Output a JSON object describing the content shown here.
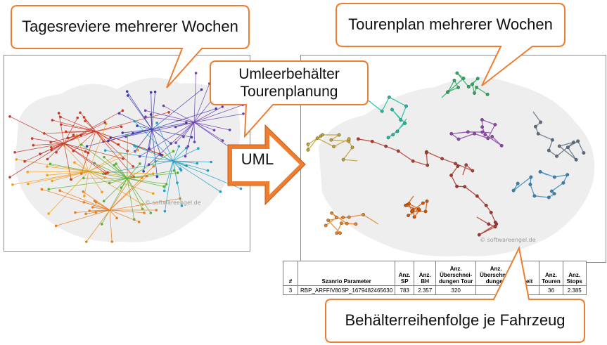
{
  "callouts": {
    "daily_areas": "Tagesreviere mehrerer Wochen",
    "tour_plan": "Tourenplan mehrerer Wochen",
    "planning_line1": "Umleerbehälter",
    "planning_line2": "Tourenplanung",
    "sequence": "Behälterreihenfolge je Fahrzeug"
  },
  "arrow_label": "UML",
  "watermark": "© softwareengel.de",
  "table": {
    "headers": [
      "#",
      "Szanrio Parameter",
      "Anz. SP",
      "Anz. BH",
      "Anz. Überschnei-dungen Tour",
      "Anz. Überschnei-dungen",
      "heit",
      "Anz. Touren",
      "Anz. Stops"
    ],
    "row": [
      "3",
      "RBP_ARFFIV80SP_1679482465630",
      "783",
      "2.357",
      "320",
      "",
      "",
      "36",
      "2.385"
    ]
  },
  "colors": {
    "callout_border": "#ed7d31",
    "arrow_fill": "#ed7d31",
    "map_area": "#eeeeee"
  }
}
